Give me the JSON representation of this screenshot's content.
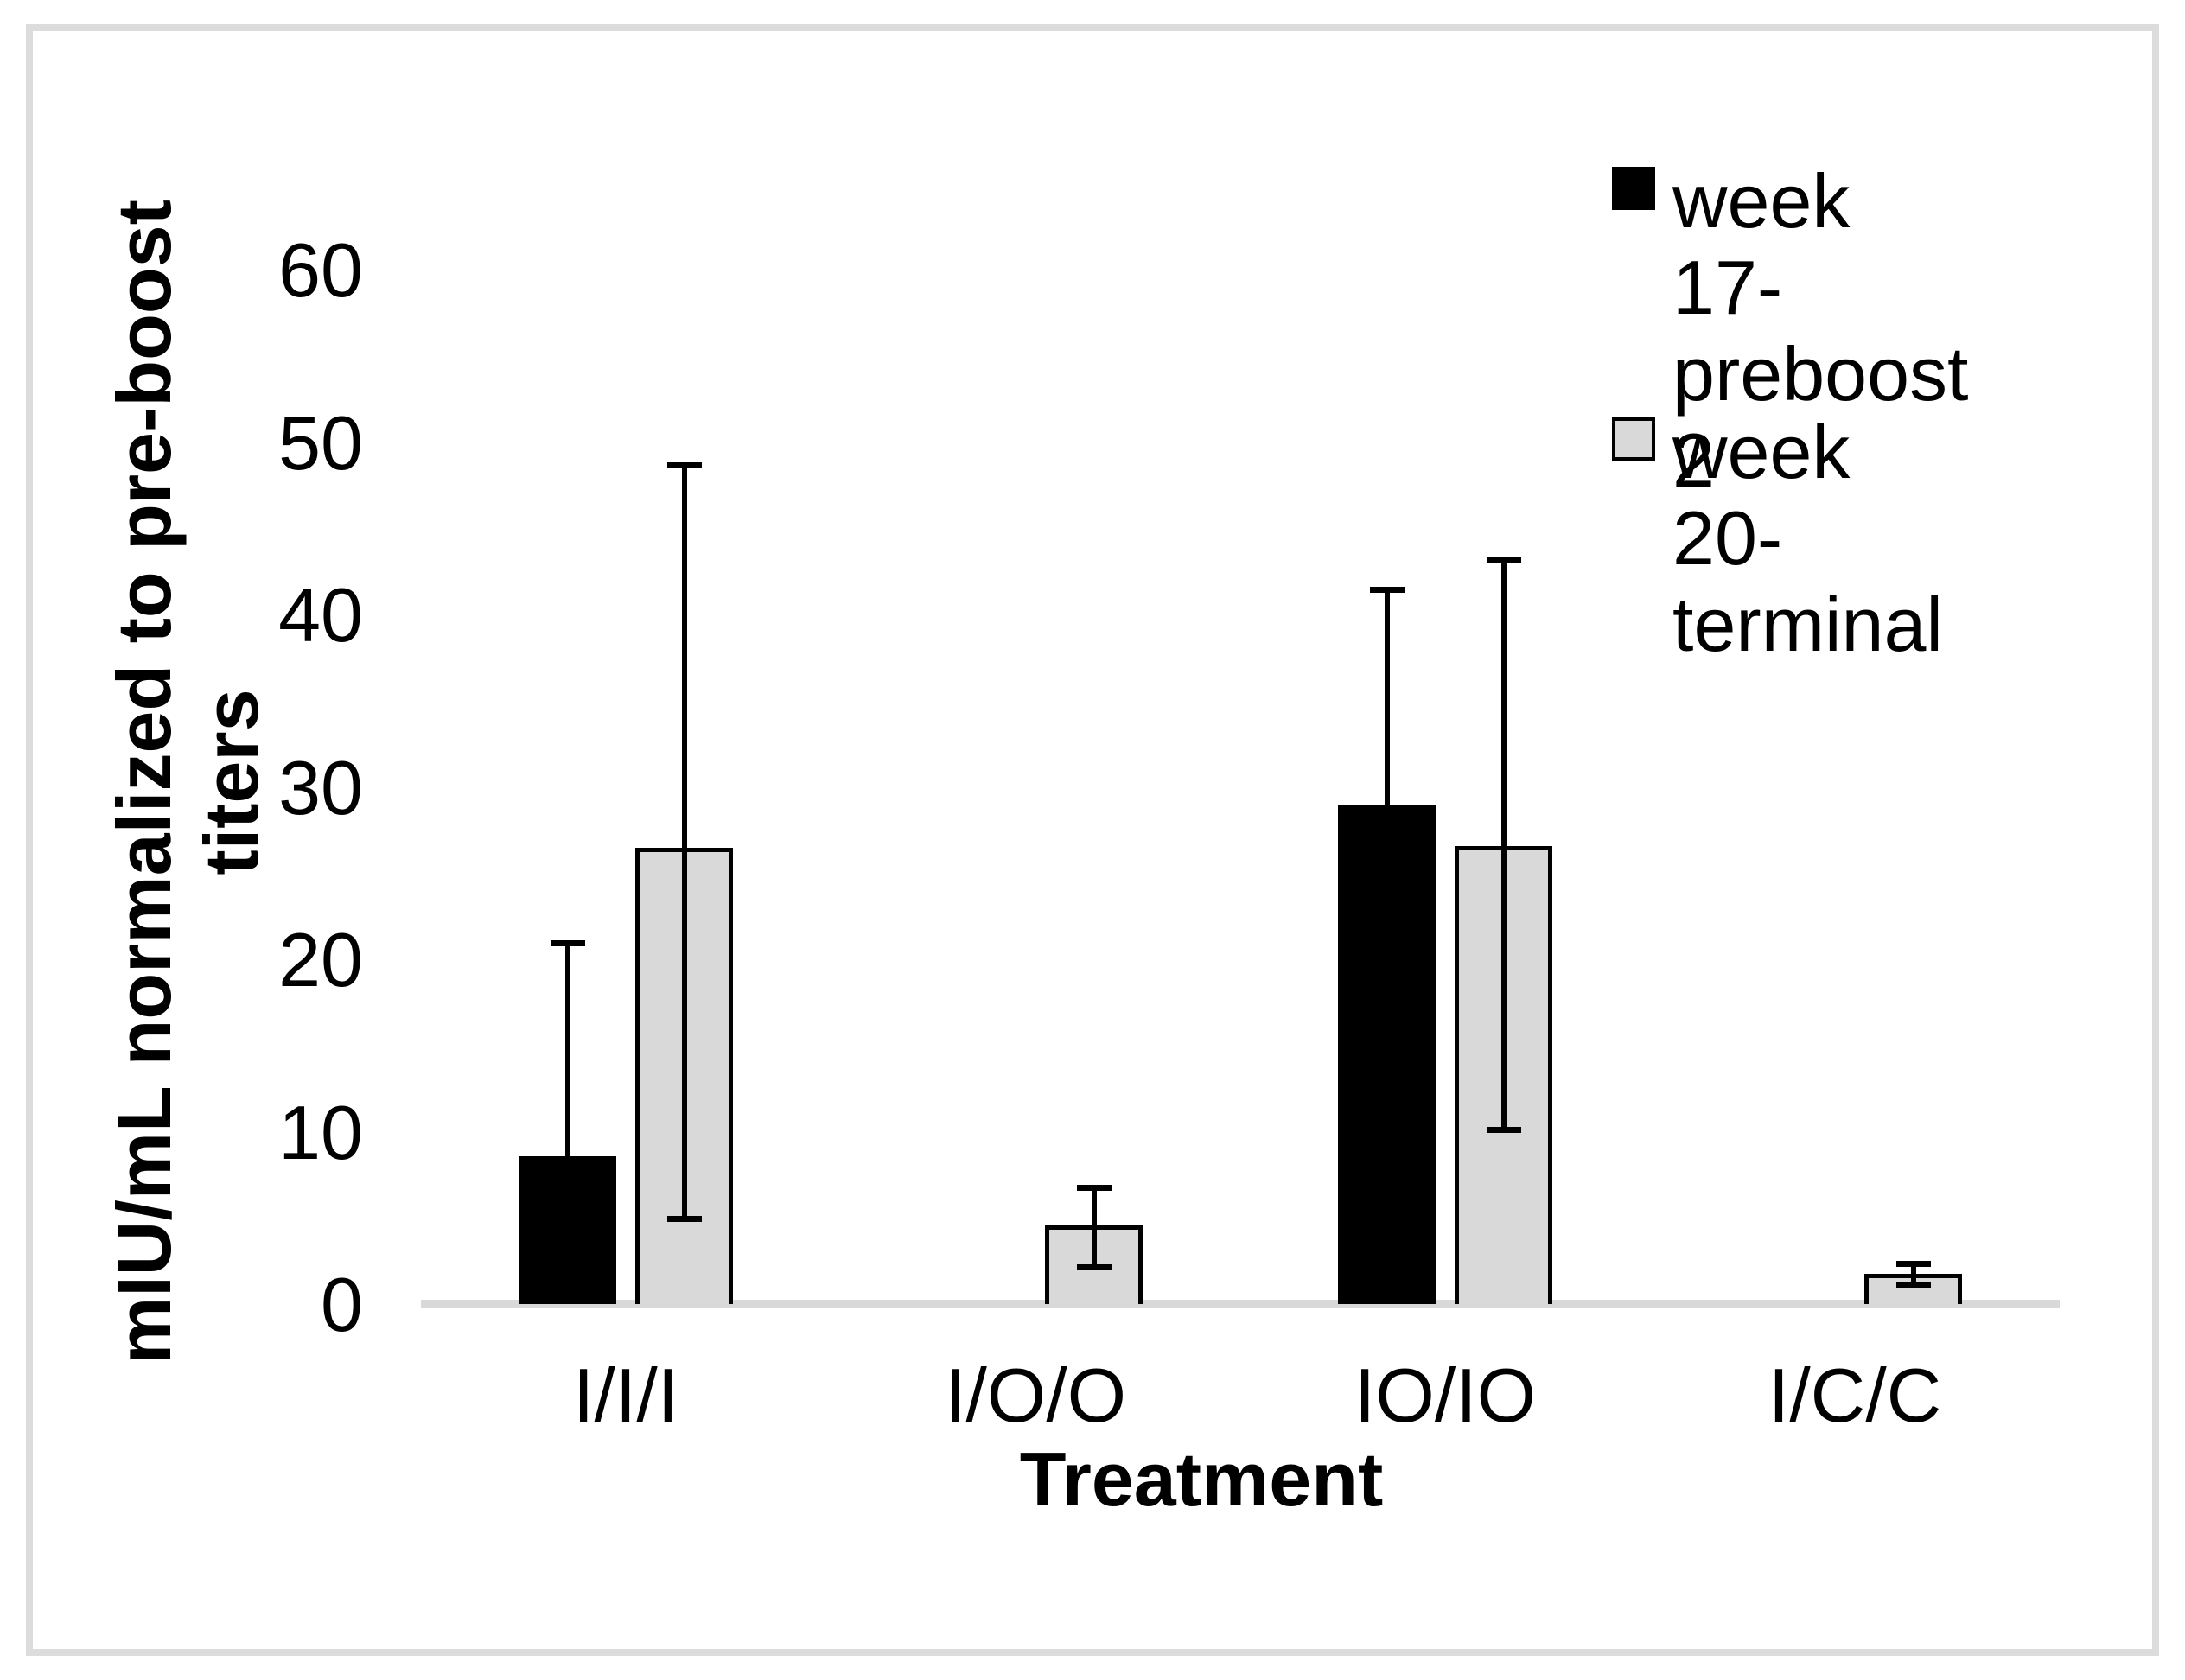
{
  "chart_data": {
    "type": "bar",
    "title": "",
    "xlabel": "Treatment",
    "ylabel": "mIU/mL normalized to pre-boost titers",
    "ylabel_lines": [
      "mIU/mL normalized to pre-boost",
      "titers"
    ],
    "ylim": [
      0,
      60
    ],
    "yticks": [
      0,
      10,
      20,
      30,
      40,
      50,
      60
    ],
    "categories": [
      "I/I/I",
      "I/O/O",
      "IO/IO",
      "I/C/C"
    ],
    "series": [
      {
        "name": "week 17-preboost 2",
        "legend_lines": [
          "week 17-",
          "preboost 2"
        ],
        "fill": "#000000",
        "border": "#000000",
        "values": [
          8.6,
          null,
          29,
          null
        ],
        "err_low": [
          8.6,
          null,
          29,
          null
        ],
        "err_high": [
          21,
          null,
          41.5,
          null
        ]
      },
      {
        "name": "week 20-terminal",
        "legend_lines": [
          "week 20-",
          "terminal"
        ],
        "fill": "#d9d9d9",
        "border": "#000000",
        "values": [
          26.5,
          4.6,
          26.6,
          1.8
        ],
        "err_low": [
          5,
          2.2,
          10.2,
          1.2
        ],
        "err_high": [
          48.7,
          6.8,
          43.2,
          2.4
        ]
      }
    ],
    "legend_position": "top-right",
    "grid": false,
    "axis_line_color": "#d9d9d9",
    "bar_fill_gray": "#d9d9d9",
    "text_color": "#000000",
    "border_color": "#dcdcdc"
  }
}
